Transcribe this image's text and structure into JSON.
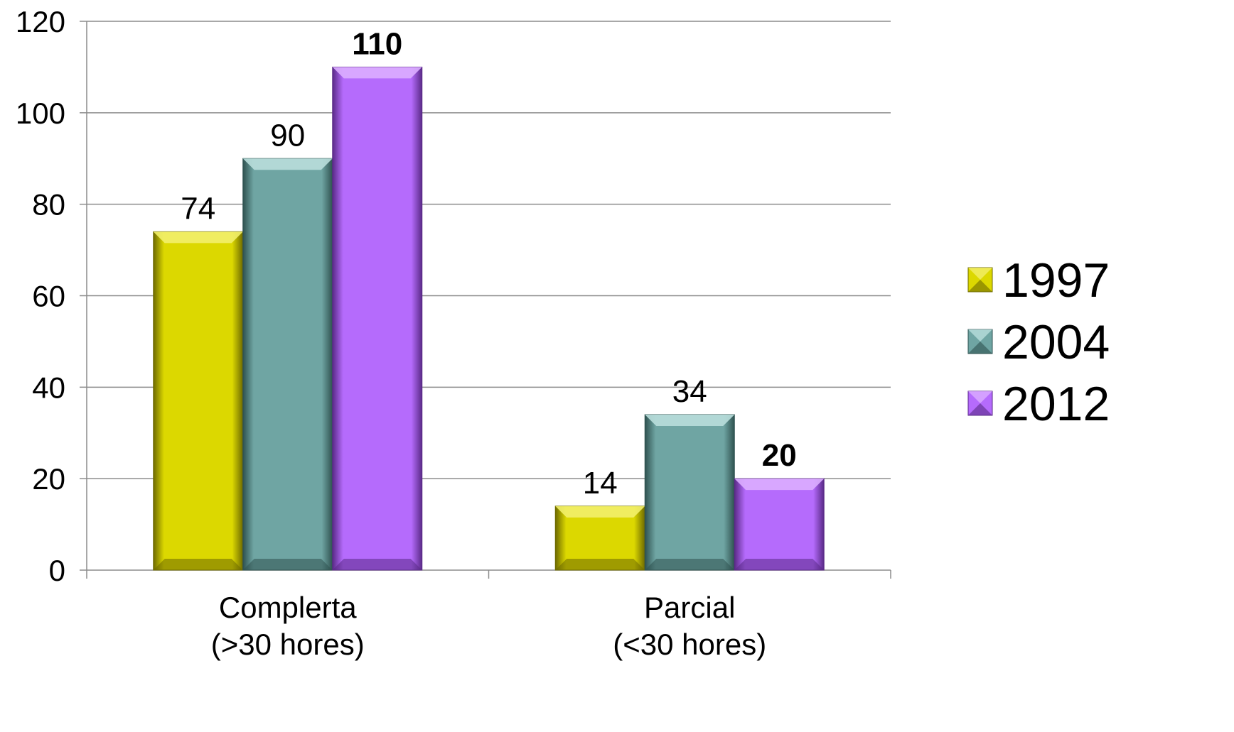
{
  "chart_data": {
    "type": "bar",
    "categories": [
      "Complerta\n(>30 hores)",
      "Parcial\n(<30 hores)"
    ],
    "series": [
      {
        "name": "1997",
        "values": [
          74,
          14
        ],
        "color": "#dcd800",
        "dark": "#6e6a00",
        "light": "#f2ef6a",
        "bold_labels": [
          false,
          false
        ]
      },
      {
        "name": "2004",
        "values": [
          90,
          34
        ],
        "color": "#6fa5a3",
        "dark": "#2f5250",
        "light": "#b9dedc",
        "bold_labels": [
          false,
          false
        ]
      },
      {
        "name": "2012",
        "values": [
          110,
          20
        ],
        "color": "#b56bfc",
        "dark": "#5a2a87",
        "light": "#dcaeff",
        "bold_labels": [
          true,
          true
        ]
      }
    ],
    "ylim": [
      0,
      120
    ],
    "yticks": [
      0,
      20,
      40,
      60,
      80,
      100,
      120
    ],
    "grid": true,
    "legend_position": "right",
    "title": "",
    "xlabel": "",
    "ylabel": ""
  }
}
